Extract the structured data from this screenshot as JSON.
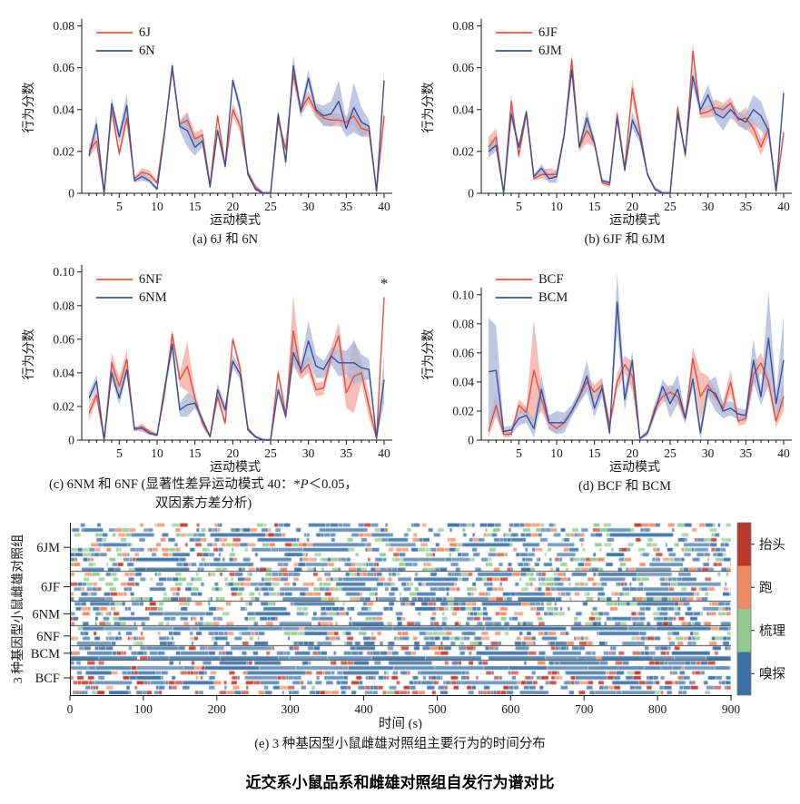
{
  "figure": {
    "title": "近交系小鼠品系和雌雄对照组自发行为谱对比"
  },
  "colors": {
    "red_line": "#e2523f",
    "red_band": "#f3a89d",
    "blue_line": "#3c5096",
    "blue_band": "#a9b4d8",
    "axis": "#1a1a1a",
    "raster_head": "#b93a2c",
    "raster_run": "#ef8a67",
    "raster_groom": "#90ca90",
    "raster_sniff": "#3c72a3"
  },
  "chart_data": {
    "line_panels": [
      {
        "id": "a",
        "type": "line",
        "caption": "(a) 6J 和 6N",
        "xlabel": "运动模式",
        "ylabel": "行为分数",
        "ymax": 0.082,
        "yticks": [
          0,
          0.02,
          0.04,
          0.06,
          0.08
        ],
        "ytick_labels": [
          "0",
          "0.02",
          "0.04",
          "0.06",
          "0.08"
        ],
        "xticks": [
          5,
          10,
          15,
          20,
          25,
          30,
          35,
          40
        ],
        "xmax": 40,
        "series": [
          {
            "name": "6J",
            "color": "red",
            "values": [
              0.02,
              0.025,
              0,
              0.04,
              0.019,
              0.036,
              0.007,
              0.01,
              0.009,
              0.005,
              0.03,
              0.059,
              0.033,
              0.035,
              0.026,
              0.028,
              0.004,
              0.037,
              0.013,
              0.04,
              0.032,
              0.01,
              0.003,
              0,
              0,
              0.035,
              0.021,
              0.057,
              0.04,
              0.046,
              0.039,
              0.036,
              0.035,
              0.035,
              0.034,
              0.037,
              0.031,
              0.03,
              0.001,
              0.037
            ],
            "err": [
              0.003,
              0.003,
              0.001,
              0.003,
              0.002,
              0.003,
              0.001,
              0.002,
              0.002,
              0.001,
              0.002,
              0.002,
              0.002,
              0.004,
              0.003,
              0.003,
              0.001,
              0.002,
              0.002,
              0.003,
              0.003,
              0.001,
              0.001,
              0.001,
              0.001,
              0.002,
              0.002,
              0.004,
              0.003,
              0.003,
              0.003,
              0.003,
              0.003,
              0.003,
              0.003,
              0.004,
              0.004,
              0.003,
              0.001,
              0.004
            ]
          },
          {
            "name": "6N",
            "color": "blue",
            "values": [
              0.018,
              0.033,
              0,
              0.043,
              0.027,
              0.042,
              0.006,
              0.008,
              0.006,
              0.002,
              0.029,
              0.061,
              0.032,
              0.03,
              0.022,
              0.025,
              0.003,
              0.03,
              0.013,
              0.054,
              0.04,
              0.009,
              0.002,
              0,
              0,
              0.038,
              0.015,
              0.061,
              0.039,
              0.055,
              0.04,
              0.037,
              0.038,
              0.044,
              0.031,
              0.041,
              0.034,
              0.032,
              0.001,
              0.054
            ],
            "err": [
              0.002,
              0.004,
              0.001,
              0.003,
              0.003,
              0.006,
              0.001,
              0.002,
              0.001,
              0.001,
              0.002,
              0.002,
              0.002,
              0.008,
              0.004,
              0.003,
              0.001,
              0.002,
              0.002,
              0.002,
              0.003,
              0.001,
              0.001,
              0.001,
              0.001,
              0.002,
              0.003,
              0.005,
              0.003,
              0.004,
              0.003,
              0.005,
              0.006,
              0.01,
              0.004,
              0.012,
              0.007,
              0.003,
              0.001,
              0.004
            ]
          }
        ]
      },
      {
        "id": "b",
        "type": "line",
        "caption": "(b) 6JF 和 6JM",
        "xlabel": "运动模式",
        "ylabel": "行为分数",
        "ymax": 0.082,
        "yticks": [
          0,
          0.02,
          0.04,
          0.06,
          0.08
        ],
        "ytick_labels": [
          "0",
          "0.02",
          "0.04",
          "0.06",
          "0.08"
        ],
        "xticks": [
          5,
          10,
          15,
          20,
          25,
          30,
          35,
          40
        ],
        "xmax": 40,
        "series": [
          {
            "name": "6JF",
            "color": "red",
            "values": [
              0.022,
              0.027,
              0,
              0.044,
              0.018,
              0.038,
              0.007,
              0.009,
              0.009,
              0.009,
              0.028,
              0.064,
              0.022,
              0.03,
              0.024,
              0.005,
              0.004,
              0.038,
              0.012,
              0.05,
              0.03,
              0.009,
              0.002,
              0,
              0,
              0.041,
              0.018,
              0.068,
              0.038,
              0.039,
              0.041,
              0.04,
              0.043,
              0.035,
              0.036,
              0.031,
              0.022,
              0.031,
              0.001,
              0.029
            ],
            "err": [
              0.005,
              0.004,
              0.001,
              0.004,
              0.002,
              0.002,
              0.001,
              0.002,
              0.003,
              0.002,
              0.002,
              0.003,
              0.002,
              0.006,
              0.002,
              0.001,
              0.001,
              0.002,
              0.002,
              0.005,
              0.003,
              0.001,
              0.001,
              0.001,
              0.001,
              0.002,
              0.002,
              0.004,
              0.002,
              0.003,
              0.004,
              0.003,
              0.003,
              0.003,
              0.005,
              0.004,
              0.004,
              0.004,
              0.001,
              0.003
            ]
          },
          {
            "name": "6JM",
            "color": "blue",
            "values": [
              0.02,
              0.023,
              0,
              0.038,
              0.022,
              0.039,
              0.008,
              0.012,
              0.007,
              0.008,
              0.028,
              0.059,
              0.022,
              0.036,
              0.024,
              0.006,
              0.005,
              0.036,
              0.011,
              0.035,
              0.027,
              0.009,
              0.002,
              0,
              0,
              0.038,
              0.019,
              0.056,
              0.04,
              0.047,
              0.038,
              0.036,
              0.04,
              0.036,
              0.034,
              0.04,
              0.037,
              0.03,
              0.001,
              0.048
            ],
            "err": [
              0.003,
              0.003,
              0.001,
              0.003,
              0.002,
              0.002,
              0.001,
              0.002,
              0.002,
              0.003,
              0.002,
              0.003,
              0.002,
              0.004,
              0.002,
              0.001,
              0.001,
              0.002,
              0.002,
              0.004,
              0.003,
              0.001,
              0.001,
              0.001,
              0.001,
              0.002,
              0.002,
              0.005,
              0.003,
              0.005,
              0.003,
              0.006,
              0.004,
              0.003,
              0.004,
              0.007,
              0.007,
              0.004,
              0.001,
              0.004
            ]
          }
        ]
      },
      {
        "id": "c",
        "type": "line",
        "caption": "",
        "caption_parts": {
          "l1a": "(c)  6NM 和 6NF (显著性差异运动模式 40：*",
          "l1_italic": "P",
          "l1b": "＜0.05，",
          "l2": "双因素方差分析)"
        },
        "xlabel": "运动模式",
        "ylabel": "行为分数",
        "ymax": 0.102,
        "yticks": [
          0,
          0.02,
          0.04,
          0.06,
          0.08,
          0.1
        ],
        "ytick_labels": [
          "0",
          "0.02",
          "0.04",
          "0.06",
          "0.08",
          "0.10"
        ],
        "xticks": [
          5,
          10,
          15,
          20,
          25,
          30,
          35,
          40
        ],
        "xmax": 40,
        "annotation": {
          "text": "*",
          "x": 40,
          "y": 0.09
        },
        "series": [
          {
            "name": "6NF",
            "color": "red",
            "values": [
              0.016,
              0.027,
              0,
              0.046,
              0.032,
              0.048,
              0.006,
              0.008,
              0.005,
              0.003,
              0.028,
              0.063,
              0.036,
              0.044,
              0.025,
              0.01,
              0.002,
              0.026,
              0.01,
              0.06,
              0.042,
              0.007,
              0.002,
              0,
              0,
              0.04,
              0.015,
              0.065,
              0.04,
              0.045,
              0.03,
              0.031,
              0.05,
              0.062,
              0.028,
              0.038,
              0.04,
              0.02,
              0.001,
              0.085
            ],
            "err": [
              0.004,
              0.004,
              0.001,
              0.006,
              0.005,
              0.006,
              0.001,
              0.002,
              0.001,
              0.001,
              0.003,
              0.003,
              0.004,
              0.015,
              0.004,
              0.002,
              0.001,
              0.003,
              0.002,
              0.002,
              0.003,
              0.001,
              0.001,
              0.001,
              0.001,
              0.003,
              0.003,
              0.021,
              0.004,
              0.005,
              0.004,
              0.004,
              0.005,
              0.008,
              0.009,
              0.022,
              0.006,
              0.007,
              0.001,
              0.003
            ]
          },
          {
            "name": "6NM",
            "color": "blue",
            "values": [
              0.025,
              0.035,
              0,
              0.04,
              0.025,
              0.042,
              0.007,
              0.007,
              0.004,
              0.003,
              0.031,
              0.057,
              0.018,
              0.021,
              0.022,
              0.012,
              0.002,
              0.03,
              0.018,
              0.047,
              0.039,
              0.006,
              0.002,
              0,
              0,
              0.03,
              0.014,
              0.052,
              0.042,
              0.059,
              0.044,
              0.042,
              0.05,
              0.046,
              0.046,
              0.046,
              0.043,
              0.042,
              0.001,
              0.036
            ],
            "err": [
              0.003,
              0.004,
              0.001,
              0.004,
              0.004,
              0.004,
              0.001,
              0.002,
              0.001,
              0.001,
              0.003,
              0.006,
              0.004,
              0.007,
              0.003,
              0.002,
              0.001,
              0.004,
              0.003,
              0.004,
              0.003,
              0.001,
              0.001,
              0.001,
              0.001,
              0.003,
              0.002,
              0.006,
              0.004,
              0.012,
              0.007,
              0.005,
              0.005,
              0.008,
              0.007,
              0.013,
              0.008,
              0.006,
              0.001,
              0.014
            ]
          }
        ]
      },
      {
        "id": "d",
        "type": "line",
        "caption": "(d)  BCF 和 BCM",
        "xlabel": "运动模式",
        "ylabel": "行为分数",
        "ymax": 0.118,
        "yticks": [
          0,
          0.02,
          0.04,
          0.06,
          0.08,
          0.1
        ],
        "ytick_labels": [
          "0",
          "0.02",
          "0.04",
          "0.06",
          "0.08",
          "0.10"
        ],
        "xticks": [
          5,
          10,
          15,
          20,
          25,
          30,
          35,
          40
        ],
        "xmax": 40,
        "series": [
          {
            "name": "BCF",
            "color": "red",
            "values": [
              0.006,
              0.024,
              0.004,
              0.004,
              0.024,
              0.019,
              0.048,
              0.028,
              0.012,
              0.008,
              0.012,
              0.02,
              0.03,
              0.04,
              0.033,
              0.038,
              0.01,
              0.04,
              0.052,
              0.044,
              0.001,
              0.005,
              0.022,
              0.03,
              0.033,
              0.03,
              0.015,
              0.056,
              0.03,
              0.038,
              0.03,
              0.022,
              0.04,
              0.013,
              0.015,
              0.045,
              0.053,
              0.04,
              0.013,
              0.03
            ],
            "err": [
              0.004,
              0.008,
              0.002,
              0.002,
              0.004,
              0.004,
              0.035,
              0.008,
              0.004,
              0.003,
              0.003,
              0.003,
              0.004,
              0.005,
              0.005,
              0.005,
              0.003,
              0.006,
              0.006,
              0.01,
              0.001,
              0.002,
              0.004,
              0.004,
              0.005,
              0.005,
              0.003,
              0.008,
              0.017,
              0.006,
              0.004,
              0.004,
              0.008,
              0.003,
              0.004,
              0.008,
              0.007,
              0.006,
              0.004,
              0.01
            ]
          },
          {
            "name": "BCM",
            "color": "blue",
            "values": [
              0.047,
              0.048,
              0.006,
              0.007,
              0.015,
              0.017,
              0.008,
              0.035,
              0.012,
              0.012,
              0.012,
              0.02,
              0.03,
              0.044,
              0.022,
              0.036,
              0.005,
              0.095,
              0.028,
              0.055,
              0.001,
              0.005,
              0.02,
              0.037,
              0.025,
              0.035,
              0.015,
              0.042,
              0.005,
              0.035,
              0.032,
              0.02,
              0.022,
              0.018,
              0.017,
              0.055,
              0.03,
              0.07,
              0.025,
              0.055
            ],
            "err": [
              0.037,
              0.031,
              0.003,
              0.003,
              0.005,
              0.005,
              0.006,
              0.01,
              0.005,
              0.008,
              0.007,
              0.004,
              0.005,
              0.011,
              0.006,
              0.006,
              0.003,
              0.02,
              0.008,
              0.006,
              0.001,
              0.002,
              0.004,
              0.005,
              0.01,
              0.01,
              0.004,
              0.006,
              0.005,
              0.005,
              0.012,
              0.005,
              0.005,
              0.004,
              0.004,
              0.015,
              0.006,
              0.032,
              0.008,
              0.031
            ]
          }
        ]
      }
    ],
    "raster": {
      "type": "heatmap",
      "ylabel": "3 种基因型小鼠雌雄对照组",
      "xlabel": "时间 (s)",
      "caption": "(e) 3 种基因型小鼠雌雄对照组主要行为的时间分布",
      "xticks": [
        0,
        100,
        200,
        300,
        400,
        500,
        600,
        700,
        800,
        900
      ],
      "xmax": 900,
      "groups": [
        {
          "label": "6JM",
          "rows": 10,
          "dark_rows": [],
          "weights": {
            "head": 0.04,
            "run": 0.09,
            "groom": 0.13,
            "sniff": 0.27
          }
        },
        {
          "label": "6JF",
          "rows": 6,
          "dark_rows": [],
          "weights": {
            "head": 0.05,
            "run": 0.1,
            "groom": 0.12,
            "sniff": 0.27
          }
        },
        {
          "label": "6NM",
          "rows": 5,
          "dark_rows": [],
          "weights": {
            "head": 0.04,
            "run": 0.08,
            "groom": 0.1,
            "sniff": 0.29
          }
        },
        {
          "label": "6NF",
          "rows": 4,
          "dark_rows": [
            0
          ],
          "weights": {
            "head": 0.04,
            "run": 0.07,
            "groom": 0.11,
            "sniff": 0.3
          }
        },
        {
          "label": "BCM",
          "rows": 3,
          "dark_rows": [
            2
          ],
          "weights": {
            "head": 0.15,
            "run": 0.03,
            "groom": 0.01,
            "sniff": 0.38
          }
        },
        {
          "label": "BCF",
          "rows": 7,
          "dark_rows": [
            1
          ],
          "weights": {
            "head": 0.19,
            "run": 0.04,
            "groom": 0.01,
            "sniff": 0.31
          }
        }
      ],
      "legend": [
        {
          "label": "抬头",
          "key": "head"
        },
        {
          "label": "跑",
          "key": "run"
        },
        {
          "label": "梳理",
          "key": "groom"
        },
        {
          "label": "嗅探",
          "key": "sniff"
        }
      ]
    }
  }
}
